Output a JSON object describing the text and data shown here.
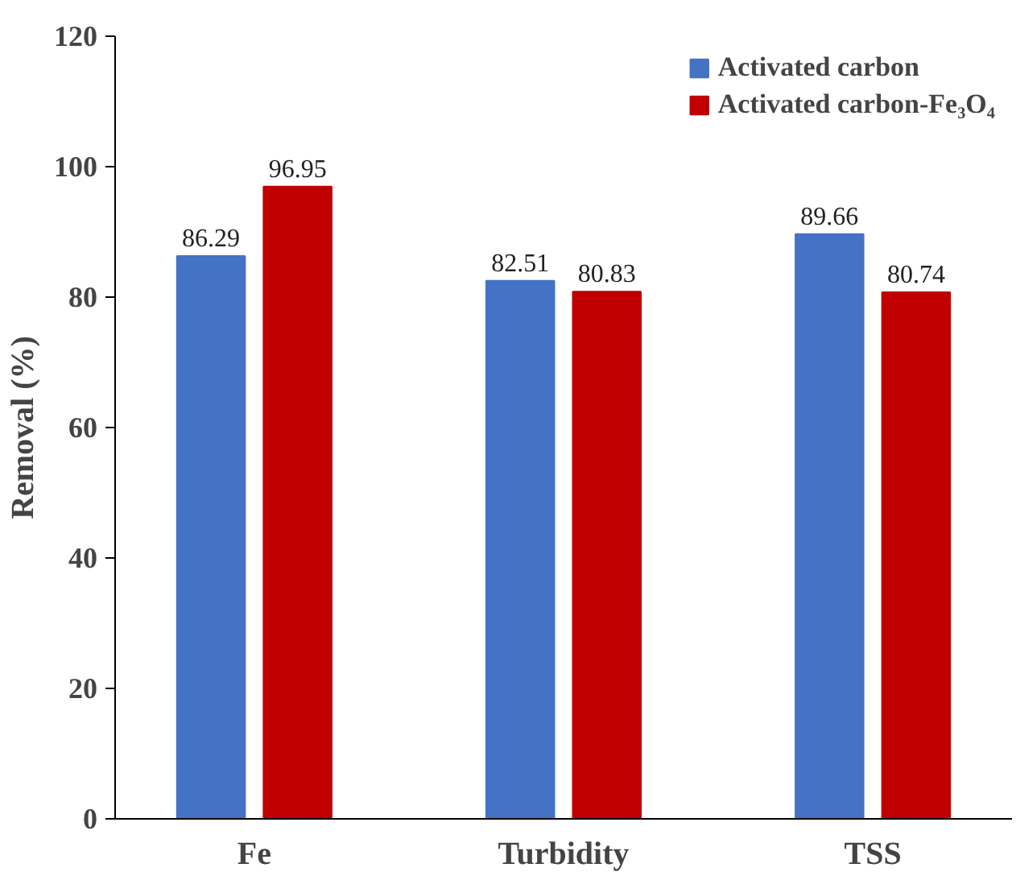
{
  "chart_data": {
    "type": "bar",
    "ylabel": "Removal (%)",
    "categories": [
      "Fe",
      "Turbidity",
      "TSS"
    ],
    "series": [
      {
        "name": "Activated carbon",
        "color": "#4472c4",
        "values": [
          86.29,
          82.51,
          89.66
        ]
      },
      {
        "name": "Activated carbon-Fe₃O₄",
        "color": "#c00000",
        "values": [
          96.95,
          80.83,
          80.74
        ]
      }
    ],
    "ylim": [
      0,
      120
    ],
    "yticks": [
      0,
      20,
      40,
      60,
      80,
      100,
      120
    ],
    "grid": false,
    "legend": "top right",
    "data_labels": true
  }
}
